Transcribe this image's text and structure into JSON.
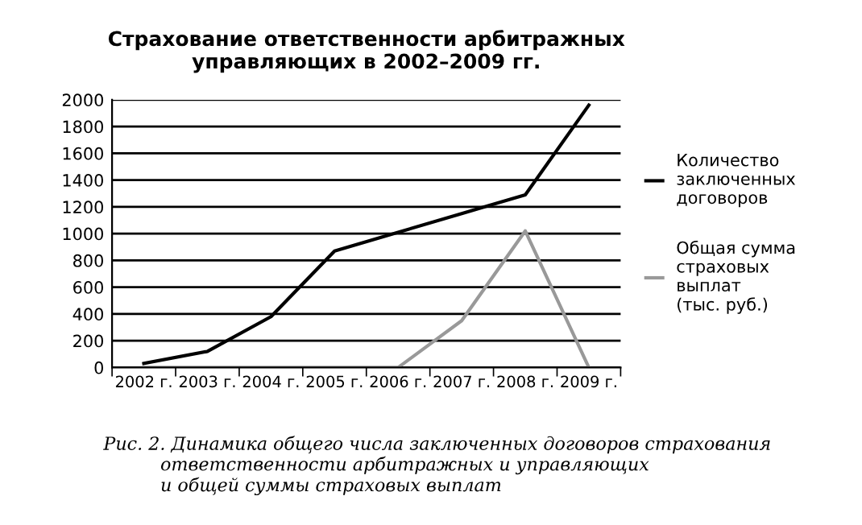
{
  "chart_data": {
    "type": "line",
    "title": "Страхование ответственности арбитражных\nуправляющих в 2002–2009 гг.",
    "categories": [
      "2002 г.",
      "2003 г.",
      "2004 г.",
      "2005 г.",
      "2006 г.",
      "2007 г.",
      "2008 г.",
      "2009 г."
    ],
    "series": [
      {
        "name": "Количество\nзаключенных\nдоговоров",
        "color": "#000000",
        "values": [
          30,
          120,
          380,
          870,
          1010,
          1150,
          1290,
          1960
        ]
      },
      {
        "name": "Общая сумма\nстраховых\nвыплат\n(тыс. руб.)",
        "color": "#999999",
        "values": [
          0,
          0,
          0,
          0,
          0,
          350,
          1020,
          0
        ]
      }
    ],
    "ylim": [
      0,
      2000
    ],
    "yticks": [
      0,
      200,
      400,
      600,
      800,
      1000,
      1200,
      1400,
      1600,
      1800,
      2000
    ],
    "grid": "y",
    "legend": "right",
    "marker": "none",
    "line_style": "solid",
    "annotations": [
      "Рис. 2. Динамика общего числа заключенных договоров страхования\n          ответственности арбитражных и управляющих\n          и общей суммы страховых выплат"
    ]
  }
}
